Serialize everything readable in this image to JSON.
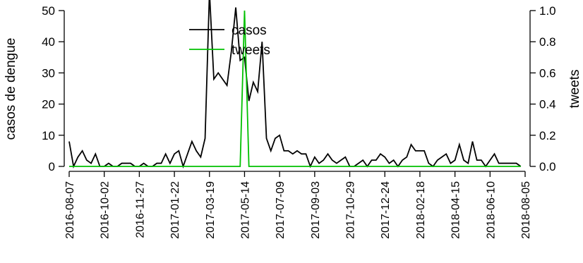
{
  "chart_data": {
    "type": "line",
    "xlabel": "",
    "ylabel_left": "casos de dengue",
    "ylabel_right": "tweets",
    "ylim_left": [
      0,
      50
    ],
    "ylim_right": [
      0,
      1.0
    ],
    "yticks_left": [
      "0",
      "10",
      "20",
      "30",
      "40",
      "50"
    ],
    "yticks_right": [
      "0.0",
      "0.2",
      "0.4",
      "0.6",
      "0.8",
      "1.0"
    ],
    "xticks": [
      "2016-08-07",
      "2016-10-02",
      "2016-11-27",
      "2017-01-22",
      "2017-03-19",
      "2017-05-14",
      "2017-07-09",
      "2017-09-03",
      "2017-10-29",
      "2017-12-24",
      "2018-02-18",
      "2018-04-15",
      "2018-06-10",
      "2018-08-05"
    ],
    "x_start": "2016-08-07",
    "x_step_days": 7,
    "grid": false,
    "legend_position": "top-center",
    "series": [
      {
        "name": "casos",
        "axis": "left",
        "color": "#000000",
        "values": [
          8,
          0,
          3,
          5,
          2,
          1,
          4,
          0,
          0,
          1,
          0,
          0,
          1,
          1,
          1,
          0,
          0,
          1,
          0,
          0,
          1,
          1,
          4,
          1,
          4,
          5,
          0,
          4,
          8,
          5,
          3,
          9,
          56,
          28,
          30,
          28,
          26,
          37,
          51,
          34,
          35,
          21,
          27,
          24,
          40,
          9,
          5,
          9,
          10,
          5,
          5,
          4,
          5,
          4,
          4,
          0,
          3,
          1,
          2,
          4,
          2,
          1,
          2,
          3,
          0,
          0,
          1,
          2,
          0,
          2,
          2,
          4,
          3,
          1,
          2,
          0,
          2,
          3,
          7,
          5,
          5,
          5,
          1,
          0,
          2,
          3,
          4,
          1,
          2,
          7,
          2,
          1,
          8,
          2,
          2,
          0,
          2,
          4,
          1,
          1,
          1,
          1,
          1,
          0
        ]
      },
      {
        "name": "tweets",
        "axis": "right",
        "color": "#00c000",
        "values": [
          0,
          0,
          0,
          0,
          0,
          0,
          0,
          0,
          0,
          0,
          0,
          0,
          0,
          0,
          0,
          0,
          0,
          0,
          0,
          0,
          0,
          0,
          0,
          0,
          0,
          0,
          0,
          0,
          0,
          0,
          0,
          0,
          0,
          0,
          0,
          0,
          0,
          0,
          0,
          0,
          1,
          0,
          0,
          0,
          0,
          0,
          0,
          0,
          0,
          0,
          0,
          0,
          0,
          0,
          0,
          0,
          0,
          0,
          0,
          0,
          0,
          0,
          0,
          0,
          0,
          0,
          0,
          0,
          0,
          0,
          0,
          0,
          0,
          0,
          0,
          0,
          0,
          0,
          0,
          0,
          0,
          0,
          0,
          0,
          0,
          0,
          0,
          0,
          0,
          0,
          0,
          0,
          0,
          0,
          0,
          0,
          0,
          0,
          0,
          0,
          0,
          0,
          0,
          0
        ]
      }
    ]
  }
}
